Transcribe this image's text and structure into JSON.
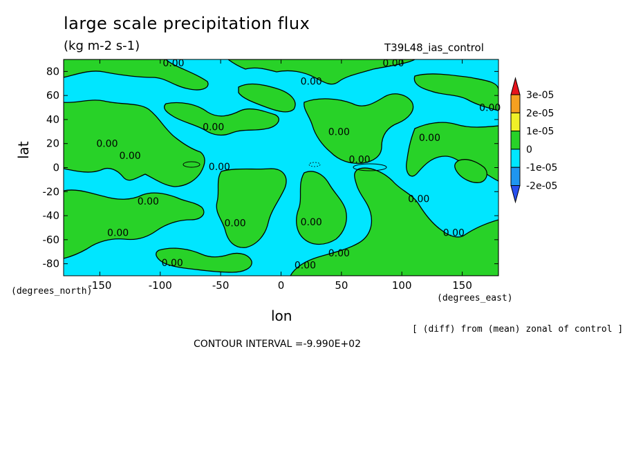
{
  "chart_data": {
    "type": "heatmap",
    "title": "large scale precipitation flux",
    "units": "(kg m-2 s-1)",
    "run_label": "T39L48_ias_control",
    "xlabel": "lon",
    "ylabel": "lat",
    "x_unit_label": "(degrees_east)",
    "y_unit_label": "(degrees_north)",
    "xlim": [
      -180,
      180
    ],
    "ylim": [
      -90,
      90
    ],
    "x_ticks": [
      -150,
      -100,
      -50,
      0,
      50,
      100,
      150
    ],
    "x_tick_labels": [
      "-150",
      "-100",
      "-50",
      "0",
      "50",
      "100",
      "150"
    ],
    "y_ticks": [
      80,
      60,
      40,
      20,
      0,
      -20,
      -40,
      -60,
      -80
    ],
    "y_tick_labels": [
      "80",
      "60",
      "40",
      "20",
      "0",
      "-20",
      "-40",
      "-60",
      "-80"
    ],
    "contour_labels": [
      {
        "text": "0.00",
        "lon": -89,
        "lat": 87
      },
      {
        "text": "0.00",
        "lon": 25,
        "lat": 72
      },
      {
        "text": "0.00",
        "lon": 93,
        "lat": 87
      },
      {
        "text": "0.00",
        "lon": 173,
        "lat": 50
      },
      {
        "text": "0.00",
        "lon": 123,
        "lat": 25
      },
      {
        "text": "0.00",
        "lon": 48,
        "lat": 30
      },
      {
        "text": "0.00",
        "lon": -56,
        "lat": 34
      },
      {
        "text": "0.00",
        "lon": -144,
        "lat": 20
      },
      {
        "text": "0.00",
        "lon": -125,
        "lat": 10
      },
      {
        "text": "0.00",
        "lon": -51,
        "lat": 1
      },
      {
        "text": "0.00",
        "lon": 65,
        "lat": 7
      },
      {
        "text": "0.00",
        "lon": -110,
        "lat": -28
      },
      {
        "text": "0.00",
        "lon": 114,
        "lat": -26
      },
      {
        "text": "0.00",
        "lon": -38,
        "lat": -46
      },
      {
        "text": "0.00",
        "lon": 25,
        "lat": -45
      },
      {
        "text": "0.00",
        "lon": -135,
        "lat": -54
      },
      {
        "text": "0.00",
        "lon": 143,
        "lat": -54
      },
      {
        "text": "0.00",
        "lon": 48,
        "lat": -71
      },
      {
        "text": "0.00",
        "lon": -90,
        "lat": -79
      },
      {
        "text": "0.00",
        "lon": 20,
        "lat": -81
      }
    ],
    "colorbar": {
      "levels": [
        "3e-05",
        "2e-05",
        "1e-05",
        "0",
        "-1e-05",
        "-2e-05"
      ],
      "colors": [
        "#e8141c",
        "#f5a020",
        "#f0f028",
        "#28d228",
        "#00e6ff",
        "#1e96f0",
        "#2850f0"
      ]
    },
    "footnote": "[ (diff) from (mean) zonal of control ]",
    "contour_interval": "CONTOUR INTERVAL =-9.990E+02"
  }
}
